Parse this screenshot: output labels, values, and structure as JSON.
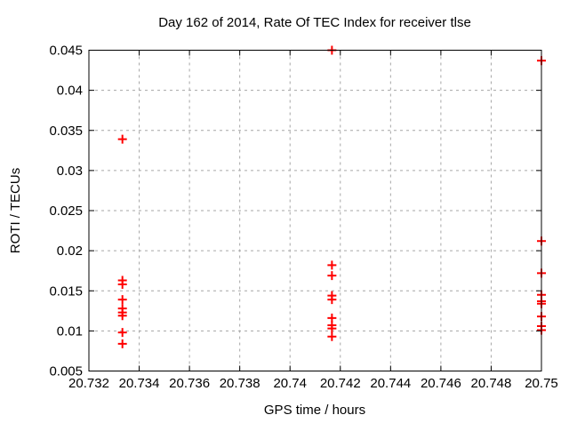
{
  "chart_data": {
    "type": "scatter",
    "title": "Day 162 of 2014, Rate Of TEC Index for receiver tlse",
    "xlabel": "GPS time / hours",
    "ylabel": "ROTI / TECUs",
    "xlim": [
      20.732,
      20.75
    ],
    "ylim": [
      0.005,
      0.045
    ],
    "xticks": {
      "values": [
        20.732,
        20.734,
        20.736,
        20.738,
        20.74,
        20.742,
        20.744,
        20.746,
        20.748,
        20.75
      ],
      "labels": [
        "20.732",
        "20.734",
        "20.736",
        "20.738",
        "20.74",
        "20.742",
        "20.744",
        "20.746",
        "20.748",
        "20.75"
      ]
    },
    "yticks": {
      "values": [
        0.005,
        0.01,
        0.015,
        0.02,
        0.025,
        0.03,
        0.035,
        0.04,
        0.045
      ],
      "labels": [
        "0.005",
        "0.01",
        "0.015",
        "0.02",
        "0.025",
        "0.03",
        "0.035",
        "0.04",
        "0.045"
      ]
    },
    "grid": true,
    "legend": "none",
    "marker": {
      "shape": "plus",
      "color": "#ff0000"
    },
    "grid_color": "#a6a6a6",
    "axis_color": "#000000",
    "background_color": "#ffffff",
    "series": [
      {
        "name": "ROTI",
        "data": [
          [
            20.733333,
            0.0339
          ],
          [
            20.733333,
            0.0163
          ],
          [
            20.733333,
            0.0158
          ],
          [
            20.733333,
            0.0139
          ],
          [
            20.733333,
            0.0128
          ],
          [
            20.733333,
            0.0123
          ],
          [
            20.733333,
            0.0119
          ],
          [
            20.733333,
            0.0098
          ],
          [
            20.733333,
            0.0084
          ],
          [
            20.741667,
            0.045
          ],
          [
            20.741667,
            0.0182
          ],
          [
            20.741667,
            0.0169
          ],
          [
            20.741667,
            0.0144
          ],
          [
            20.741667,
            0.0139
          ],
          [
            20.741667,
            0.0116
          ],
          [
            20.741667,
            0.0107
          ],
          [
            20.741667,
            0.0103
          ],
          [
            20.741667,
            0.0093
          ],
          [
            20.75,
            0.0437
          ],
          [
            20.75,
            0.0212
          ],
          [
            20.75,
            0.0172
          ],
          [
            20.75,
            0.0145
          ],
          [
            20.75,
            0.0137
          ],
          [
            20.75,
            0.0134
          ],
          [
            20.75,
            0.0118
          ],
          [
            20.75,
            0.0106
          ],
          [
            20.75,
            0.0101
          ]
        ]
      }
    ]
  }
}
